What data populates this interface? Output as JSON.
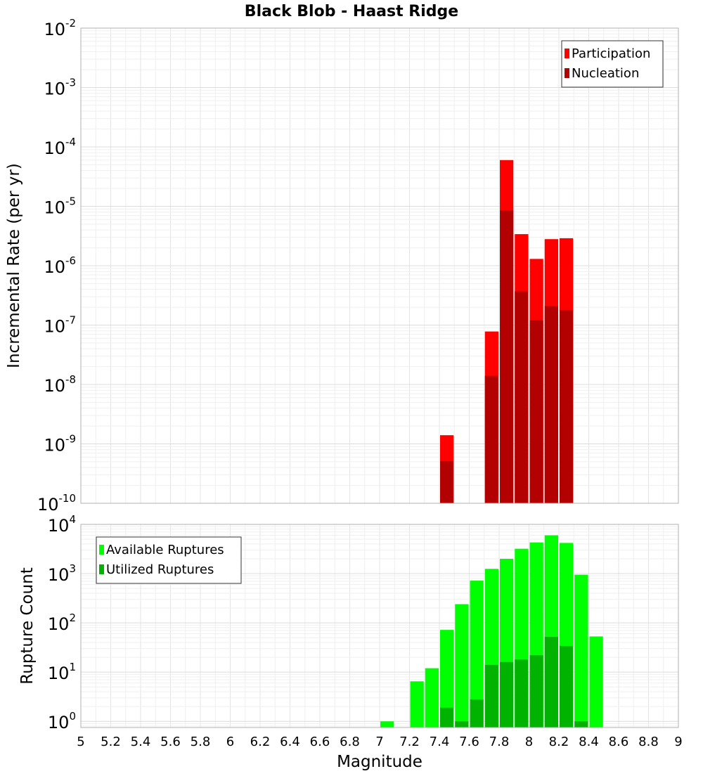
{
  "chart_data": [
    {
      "type": "bar",
      "title": "Black Blob - Haast Ridge",
      "xlabel": "",
      "ylabel": "Incremental Rate (per yr)",
      "yscale": "log",
      "xlim": [
        5,
        9
      ],
      "ylim": [
        1e-10,
        0.01
      ],
      "y_tick_base": "10",
      "y_tick_exponents": [
        "-10",
        "-9",
        "-8",
        "-7",
        "-6",
        "-5",
        "-4",
        "-3",
        "-2"
      ],
      "bin_width": 0.1,
      "grid": true,
      "legend_position": "top-right",
      "colors": {
        "Participation": "#ff0000",
        "Nucleation": "#b30000"
      },
      "series": [
        {
          "name": "Participation",
          "x": [
            7.45,
            7.75,
            7.85,
            7.95,
            8.05,
            8.15,
            8.25
          ],
          "values": [
            1.4e-09,
            7.8e-08,
            6e-05,
            3.4e-06,
            1.3e-06,
            2.8e-06,
            2.9e-06
          ]
        },
        {
          "name": "Nucleation",
          "x": [
            7.45,
            7.75,
            7.85,
            7.95,
            8.05,
            8.15,
            8.25
          ],
          "values": [
            5.1e-10,
            1.4e-08,
            8.5e-06,
            3.7e-07,
            1.2e-07,
            2.1e-07,
            1.8e-07
          ]
        }
      ]
    },
    {
      "type": "bar",
      "title": "",
      "xlabel": "Magnitude",
      "ylabel": "Rupture Count",
      "yscale": "log",
      "xlim": [
        5,
        9
      ],
      "ylim": [
        0.75,
        10000
      ],
      "y_tick_base": "10",
      "y_tick_exponents": [
        "0",
        "1",
        "2",
        "3",
        "4"
      ],
      "x_tick_labels": [
        "5",
        "5.2",
        "5.4",
        "5.6",
        "5.8",
        "6",
        "6.2",
        "6.4",
        "6.6",
        "6.8",
        "7",
        "7.2",
        "7.4",
        "7.6",
        "7.8",
        "8",
        "8.2",
        "8.4",
        "8.6",
        "8.8",
        "9"
      ],
      "bin_width": 0.1,
      "grid": true,
      "legend_position": "top-left",
      "colors": {
        "Available Ruptures": "#00ff00",
        "Utilized Ruptures": "#00b300"
      },
      "series": [
        {
          "name": "Available Ruptures",
          "x": [
            7.05,
            7.25,
            7.35,
            7.45,
            7.55,
            7.65,
            7.75,
            7.85,
            7.95,
            8.05,
            8.15,
            8.25,
            8.35,
            8.45
          ],
          "values": [
            1,
            6.5,
            12,
            72,
            240,
            720,
            1250,
            2000,
            3200,
            4300,
            6000,
            4200,
            950,
            53
          ]
        },
        {
          "name": "Utilized Ruptures",
          "x": [
            7.45,
            7.55,
            7.65,
            7.75,
            7.85,
            7.95,
            8.05,
            8.15,
            8.25,
            8.35
          ],
          "values": [
            1.9,
            1,
            2.8,
            14,
            16,
            18,
            22,
            52,
            34,
            1
          ]
        }
      ]
    }
  ]
}
